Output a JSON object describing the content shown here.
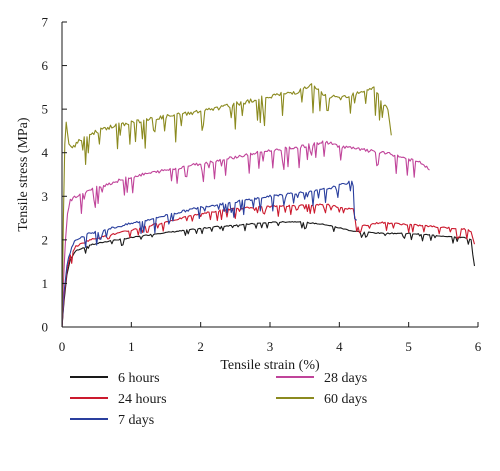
{
  "chart_data": {
    "type": "line",
    "title": "",
    "xlabel": "Tensile strain (%)",
    "ylabel": "Tensile stress (MPa)",
    "xlim": [
      0,
      6
    ],
    "ylim": [
      0,
      7
    ],
    "xticks": [
      "0",
      "1",
      "2",
      "3",
      "4",
      "5",
      "6"
    ],
    "yticks": [
      "0",
      "1",
      "2",
      "3",
      "4",
      "5",
      "6",
      "7"
    ],
    "grid": false,
    "legend_position": "below",
    "series": [
      {
        "name": "6 hours",
        "color": "#1a1a1a",
        "noise": 0.05,
        "points": [
          [
            0,
            0
          ],
          [
            0.03,
            0.6
          ],
          [
            0.07,
            1.2
          ],
          [
            0.12,
            1.55
          ],
          [
            0.2,
            1.75
          ],
          [
            0.4,
            1.88
          ],
          [
            0.7,
            1.98
          ],
          [
            1.0,
            2.05
          ],
          [
            1.4,
            2.15
          ],
          [
            1.8,
            2.22
          ],
          [
            2.2,
            2.3
          ],
          [
            2.6,
            2.35
          ],
          [
            3.0,
            2.4
          ],
          [
            3.4,
            2.42
          ],
          [
            3.8,
            2.35
          ],
          [
            4.2,
            2.2
          ],
          [
            4.6,
            2.15
          ],
          [
            5.0,
            2.15
          ],
          [
            5.4,
            2.1
          ],
          [
            5.8,
            2.05
          ],
          [
            5.9,
            2.0
          ],
          [
            5.95,
            1.4
          ]
        ]
      },
      {
        "name": "24 hours",
        "color": "#cc1a2e",
        "noise": 0.08,
        "points": [
          [
            0,
            0
          ],
          [
            0.03,
            0.7
          ],
          [
            0.07,
            1.3
          ],
          [
            0.12,
            1.65
          ],
          [
            0.2,
            1.85
          ],
          [
            0.4,
            2.0
          ],
          [
            0.8,
            2.15
          ],
          [
            1.2,
            2.3
          ],
          [
            1.6,
            2.45
          ],
          [
            2.0,
            2.6
          ],
          [
            2.4,
            2.7
          ],
          [
            2.8,
            2.75
          ],
          [
            3.2,
            2.78
          ],
          [
            3.6,
            2.8
          ],
          [
            3.8,
            2.82
          ],
          [
            4.0,
            2.75
          ],
          [
            4.2,
            2.7
          ],
          [
            4.25,
            2.3
          ],
          [
            4.6,
            2.4
          ],
          [
            5.0,
            2.35
          ],
          [
            5.4,
            2.3
          ],
          [
            5.8,
            2.25
          ],
          [
            5.9,
            2.2
          ],
          [
            5.95,
            1.9
          ]
        ]
      },
      {
        "name": "7 days",
        "color": "#2a3f9e",
        "noise": 0.12,
        "points": [
          [
            0,
            0
          ],
          [
            0.03,
            0.8
          ],
          [
            0.07,
            1.4
          ],
          [
            0.12,
            1.8
          ],
          [
            0.2,
            2.0
          ],
          [
            0.4,
            2.15
          ],
          [
            0.8,
            2.3
          ],
          [
            1.2,
            2.45
          ],
          [
            1.6,
            2.6
          ],
          [
            2.0,
            2.75
          ],
          [
            2.4,
            2.85
          ],
          [
            2.8,
            2.95
          ],
          [
            3.2,
            3.05
          ],
          [
            3.6,
            3.1
          ],
          [
            3.9,
            3.2
          ],
          [
            4.1,
            3.3
          ],
          [
            4.2,
            3.35
          ],
          [
            4.22,
            2.5
          ],
          [
            4.25,
            2.45
          ]
        ]
      },
      {
        "name": "28 days",
        "color": "#c0449a",
        "noise": 0.16,
        "points": [
          [
            0,
            0
          ],
          [
            0.02,
            1.0
          ],
          [
            0.05,
            2.0
          ],
          [
            0.08,
            2.6
          ],
          [
            0.12,
            2.9
          ],
          [
            0.2,
            3.0
          ],
          [
            0.5,
            3.2
          ],
          [
            1.0,
            3.45
          ],
          [
            1.5,
            3.6
          ],
          [
            2.0,
            3.75
          ],
          [
            2.5,
            3.9
          ],
          [
            3.0,
            4.05
          ],
          [
            3.5,
            4.15
          ],
          [
            3.8,
            4.25
          ],
          [
            4.0,
            4.15
          ],
          [
            4.4,
            4.05
          ],
          [
            4.8,
            3.95
          ],
          [
            5.2,
            3.75
          ],
          [
            5.3,
            3.6
          ]
        ]
      },
      {
        "name": "60 days",
        "color": "#8b8a1f",
        "noise": 0.22,
        "points": [
          [
            0,
            0
          ],
          [
            0.02,
            2.5
          ],
          [
            0.04,
            4.2
          ],
          [
            0.06,
            4.7
          ],
          [
            0.1,
            4.2
          ],
          [
            0.15,
            4.1
          ],
          [
            0.3,
            4.35
          ],
          [
            0.6,
            4.55
          ],
          [
            1.0,
            4.7
          ],
          [
            1.4,
            4.8
          ],
          [
            1.8,
            4.9
          ],
          [
            2.2,
            5.0
          ],
          [
            2.6,
            5.15
          ],
          [
            3.0,
            5.3
          ],
          [
            3.4,
            5.4
          ],
          [
            3.6,
            5.55
          ],
          [
            3.8,
            5.3
          ],
          [
            4.0,
            5.25
          ],
          [
            4.2,
            5.35
          ],
          [
            4.4,
            5.45
          ],
          [
            4.5,
            5.5
          ],
          [
            4.6,
            5.2
          ],
          [
            4.7,
            5.0
          ],
          [
            4.75,
            4.4
          ]
        ]
      }
    ]
  }
}
